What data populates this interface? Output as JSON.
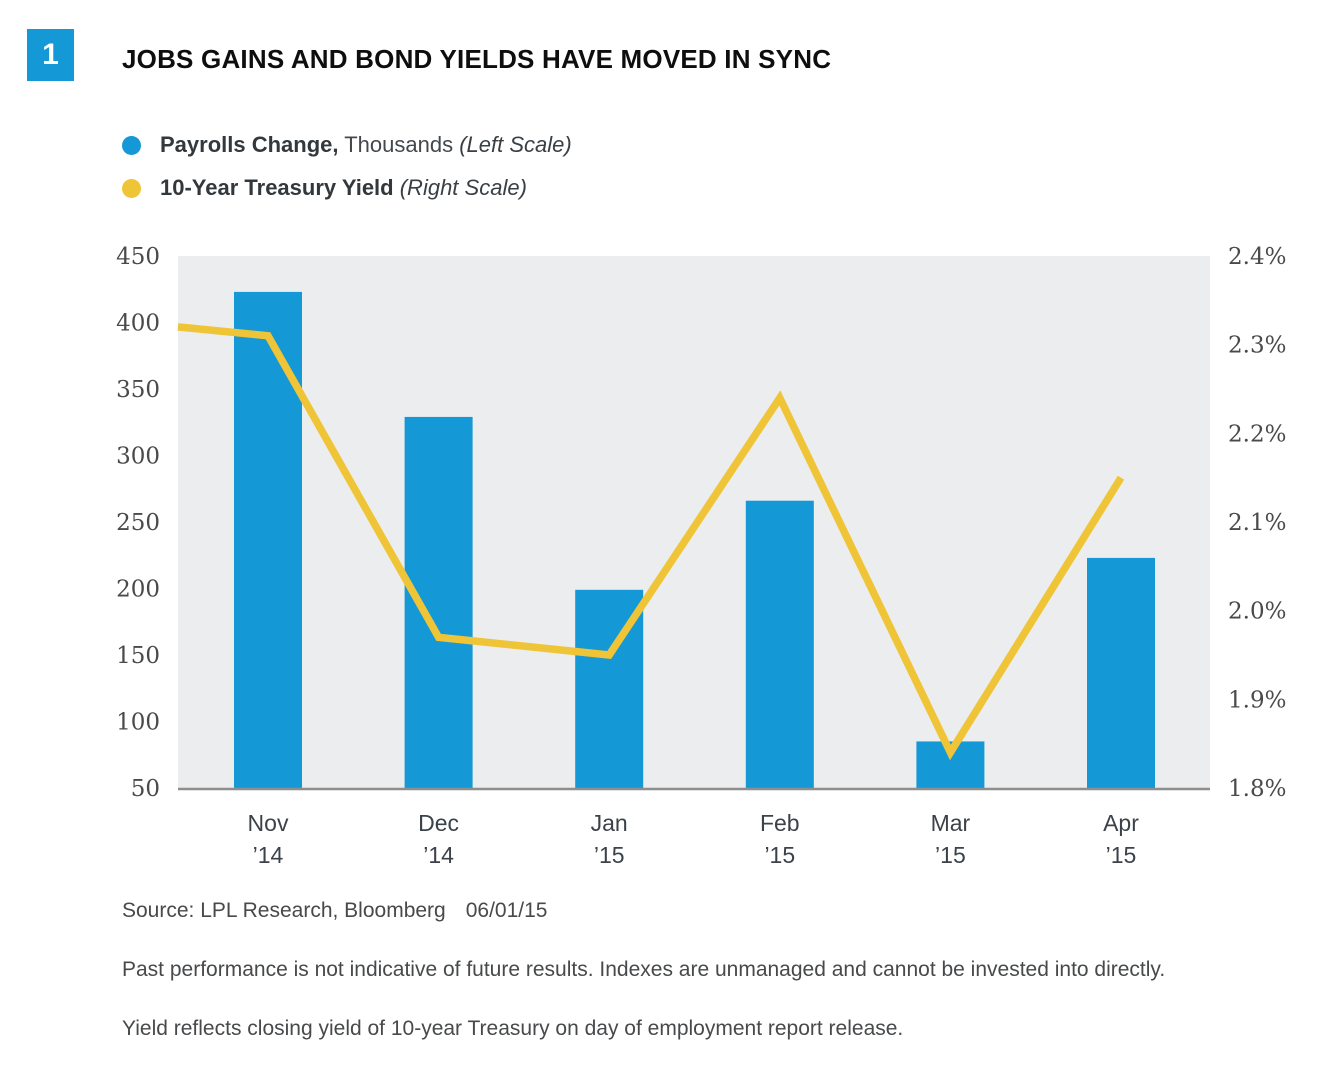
{
  "header": {
    "figure_number": "1",
    "title": "JOBS GAINS AND BOND YIELDS HAVE MOVED IN SYNC"
  },
  "accent_colors": {
    "blue": "#1598D6",
    "yellow": "#EFC437"
  },
  "legend": {
    "items": [
      {
        "marker_color": "#1598D6",
        "bold": "Payrolls Change,",
        "regular": " Thousands ",
        "italic": "(Left Scale)"
      },
      {
        "marker_color": "#EFC437",
        "bold": "10-Year Treasury Yield",
        "regular": " ",
        "italic": "(Right Scale)"
      }
    ]
  },
  "chart_data": {
    "type": "bar+line",
    "title": "JOBS GAINS AND BOND YIELDS HAVE MOVED IN SYNC",
    "categories": [
      "Nov ’14",
      "Dec ’14",
      "Jan ’15",
      "Feb ’15",
      "Mar ’15",
      "Apr ’15"
    ],
    "series": [
      {
        "name": "Payrolls Change, Thousands",
        "type": "bar",
        "axis": "left",
        "color": "#1598D6",
        "values": [
          423,
          329,
          199,
          266,
          85,
          223
        ]
      },
      {
        "name": "10-Year Treasury Yield",
        "type": "line",
        "axis": "right",
        "color": "#EFC437",
        "values": [
          2.31,
          1.97,
          1.95,
          2.24,
          1.84,
          2.15
        ],
        "lead_in_value_at_left_edge": 2.32
      }
    ],
    "left_axis": {
      "label": "Payrolls Change, Thousands (Left Scale)",
      "ticks": [
        450,
        400,
        350,
        300,
        250,
        200,
        150,
        100,
        50
      ],
      "min": 50,
      "max": 450
    },
    "right_axis": {
      "label": "10-Year Treasury Yield (Right Scale)",
      "tick_labels": [
        "2.4%",
        "2.3%",
        "2.2%",
        "2.1%",
        "2.0%",
        "1.9%",
        "1.8%"
      ],
      "min": 1.8,
      "max": 2.4
    },
    "grid": false,
    "legend_position": "top-left",
    "plot_background": "#ECEDEE",
    "axis_line_color": "#8E8E8E",
    "tick_label_color": "#4A4A4A"
  },
  "footer": {
    "source": "Source: LPL Research, Bloomberg",
    "date": "06/01/15",
    "disclaimer1": "Past performance is not indicative of future results. Indexes are unmanaged and cannot be invested into directly.",
    "disclaimer2": "Yield reflects closing yield of 10-year Treasury on day of employment report release."
  }
}
